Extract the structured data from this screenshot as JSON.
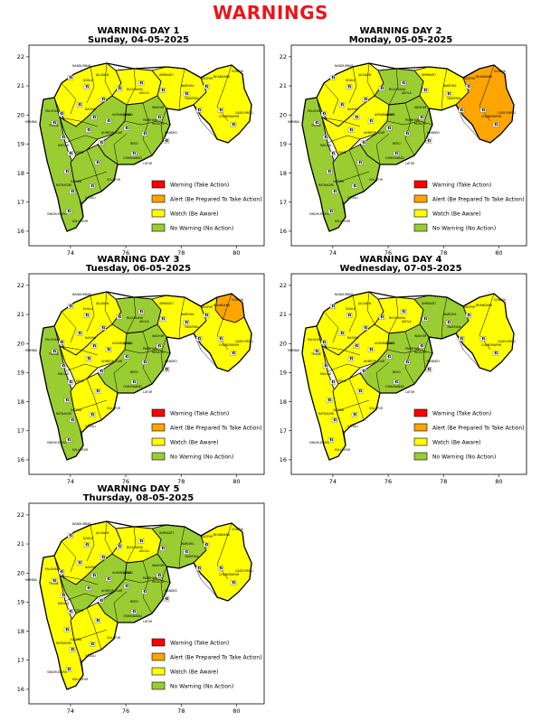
{
  "page_title": "WARNINGS",
  "colors": {
    "warning": "#ff0000",
    "alert": "#ffa500",
    "watch": "#ffff00",
    "no_warning": "#9acd32"
  },
  "legend": [
    {
      "key": "warning",
      "label": "Warning (Take Action)"
    },
    {
      "key": "alert",
      "label": "Alert (Be Prepared To Take Action)"
    },
    {
      "key": "watch",
      "label": "Watch (Be Aware)"
    },
    {
      "key": "no_warning",
      "label": "No Warning (No Action)"
    }
  ],
  "y_ticks": [
    "16",
    "17",
    "18",
    "19",
    "20",
    "21",
    "22"
  ],
  "x_ticks": [
    "74",
    "76",
    "78",
    "80"
  ],
  "map_labels": [
    "MUMBAI",
    "KOLHAPUR",
    "SINDHUDURG",
    "NAGPUR",
    "AMRAVATI",
    "AKOLA",
    "JALGAON",
    "NASHIK",
    "PUNE",
    "SATARA",
    "SANGLI",
    "SOLAPUR",
    "LATUR",
    "NANDED",
    "BEED",
    "JALNA",
    "YAVATMAL",
    "WARDHA",
    "CHANDRAPUR",
    "GONDIA",
    "BULDHANA",
    "AHMEDNAGAR",
    "PARBHANI",
    "DHULE",
    "NANDURBAR",
    "RATNAGIRI",
    "RAIGAD",
    "WASHIM",
    "HINGOLI",
    "OSMANABAD",
    "GADCHIROLI",
    "THANE",
    "BHANDARA",
    "AURANGABAD",
    "PALGHAR"
  ],
  "panels": [
    {
      "title_line1": "WARNING DAY 1",
      "title_line2": "Sunday, 04-05-2025",
      "regions": {
        "coast": "no_warning",
        "north_west": "watch",
        "north_mid": "watch",
        "central": "no_warning",
        "marathwada": "no_warning",
        "south": "no_warning",
        "vidarbha_west": "watch",
        "vidarbha_east": "watch"
      }
    },
    {
      "title_line1": "WARNING DAY 2",
      "title_line2": "Monday, 05-05-2025",
      "regions": {
        "coast": "no_warning",
        "north_west": "watch",
        "north_mid": "no_warning",
        "central": "watch",
        "marathwada": "no_warning",
        "south": "no_warning",
        "vidarbha_west": "watch",
        "vidarbha_east": "alert"
      }
    },
    {
      "title_line1": "WARNING DAY 3",
      "title_line2": "Tuesday, 06-05-2025",
      "regions": {
        "coast": "no_warning",
        "north_west": "watch",
        "north_mid": "no_warning",
        "central": "watch",
        "marathwada": "no_warning",
        "south": "watch",
        "vidarbha_west": "watch",
        "vidarbha_east": "watch",
        "nagpur_alert": "alert"
      }
    },
    {
      "title_line1": "WARNING DAY 4",
      "title_line2": "Wednesday, 07-05-2025",
      "regions": {
        "coast": "watch",
        "north_west": "watch",
        "north_mid": "watch",
        "central": "watch",
        "marathwada": "no_warning",
        "south": "watch",
        "vidarbha_west": "no_warning",
        "vidarbha_east": "watch"
      }
    },
    {
      "title_line1": "WARNING DAY 5",
      "title_line2": "Thursday, 08-05-2025",
      "regions": {
        "coast": "watch",
        "north_west": "watch",
        "north_mid": "watch",
        "central": "no_warning",
        "marathwada": "no_warning",
        "south": "watch",
        "vidarbha_west": "no_warning",
        "vidarbha_east": "watch"
      }
    }
  ]
}
